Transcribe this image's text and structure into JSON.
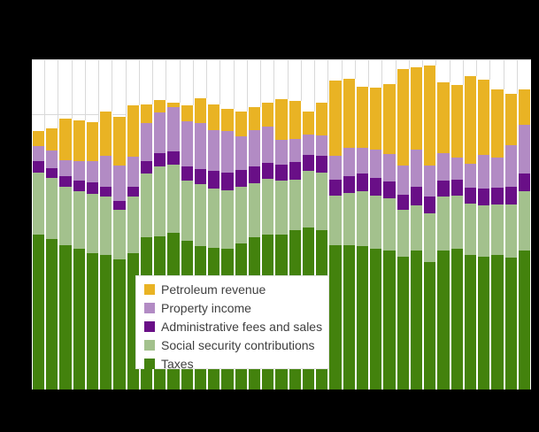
{
  "window": {
    "background_color": "#000000",
    "plot_background_color": "#FFFFFF",
    "gridline_color": "#D9D9D9"
  },
  "legend": {
    "items": [
      {
        "label": "Petroleum revenue",
        "color": "#E9B324"
      },
      {
        "label": "Property income",
        "color": "#B28BC4"
      },
      {
        "label": "Administrative fees and sales",
        "color": "#690F87"
      },
      {
        "label": "Social security contributions",
        "color": "#A3C18D"
      },
      {
        "label": "Taxes",
        "color": "#43820D"
      }
    ],
    "text_color": "#3F3F3F"
  },
  "chart_data": {
    "type": "bar",
    "stacked": true,
    "title": "",
    "xlabel": "",
    "ylabel": "",
    "axis_tick_labels_visible": false,
    "grid": true,
    "gridline_interval_estimate": 100000,
    "ylim": [
      0,
      600000
    ],
    "legend_position": "inside-lower-left",
    "x": [
      1,
      2,
      3,
      4,
      5,
      6,
      7,
      8,
      9,
      10,
      11,
      12,
      13,
      14,
      15,
      16,
      17,
      18,
      19,
      20,
      21,
      22,
      23,
      24,
      25,
      26,
      27,
      28,
      29,
      30,
      31,
      32,
      33,
      34,
      35,
      36,
      37
    ],
    "series": [
      {
        "name": "Taxes",
        "color": "#43820D",
        "values": [
          281000,
          274000,
          263000,
          255000,
          247000,
          245000,
          237000,
          247000,
          277000,
          279000,
          284000,
          271000,
          261000,
          258000,
          256000,
          266000,
          277000,
          281000,
          282000,
          290000,
          295000,
          289000,
          263000,
          263000,
          261000,
          256000,
          253000,
          242000,
          252000,
          231000,
          253000,
          256000,
          244000,
          242000,
          244000,
          240000,
          252000
        ]
      },
      {
        "name": "Social security contributions",
        "color": "#A3C18D",
        "values": [
          113000,
          110000,
          105000,
          105000,
          108000,
          105000,
          90000,
          103000,
          115000,
          127000,
          124000,
          108000,
          113000,
          108000,
          106000,
          102000,
          98000,
          102000,
          98000,
          92000,
          103000,
          105000,
          89000,
          94000,
          100000,
          97000,
          94000,
          85000,
          82000,
          89000,
          98000,
          97000,
          94000,
          92000,
          92000,
          97000,
          108000
        ]
      },
      {
        "name": "Administrative fees and sales",
        "color": "#690F87",
        "values": [
          21000,
          19000,
          19000,
          19000,
          21000,
          18000,
          15000,
          18000,
          23000,
          24000,
          24000,
          27000,
          26000,
          32000,
          32000,
          31000,
          31000,
          29000,
          29000,
          32000,
          29000,
          31000,
          29000,
          31000,
          32000,
          31000,
          31000,
          27000,
          34000,
          31000,
          29000,
          29000,
          29000,
          31000,
          31000,
          31000,
          32000
        ]
      },
      {
        "name": "Property income",
        "color": "#B28BC4",
        "values": [
          27000,
          32000,
          29000,
          36000,
          39000,
          56000,
          65000,
          55000,
          69000,
          73000,
          81000,
          81000,
          84000,
          73000,
          76000,
          61000,
          65000,
          65000,
          45000,
          42000,
          36000,
          36000,
          44000,
          52000,
          47000,
          52000,
          50000,
          53000,
          68000,
          56000,
          50000,
          40000,
          44000,
          61000,
          55000,
          76000,
          89000
        ]
      },
      {
        "name": "Petroleum revenue",
        "color": "#E9B324",
        "values": [
          27000,
          39000,
          77000,
          74000,
          71000,
          81000,
          89000,
          94000,
          34000,
          23000,
          8000,
          29000,
          45000,
          47000,
          40000,
          45000,
          42000,
          45000,
          73000,
          68000,
          42000,
          60000,
          137000,
          124000,
          110000,
          113000,
          127000,
          176000,
          150000,
          181000,
          129000,
          132000,
          158000,
          137000,
          123000,
          94000,
          65000
        ]
      }
    ]
  }
}
